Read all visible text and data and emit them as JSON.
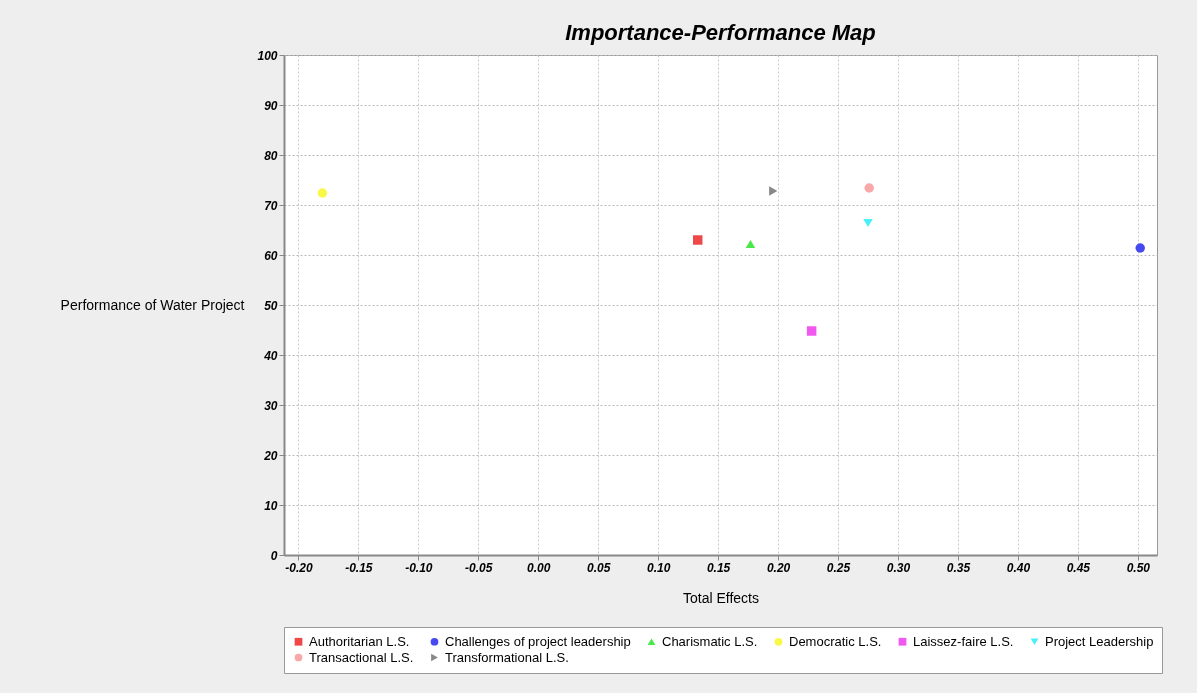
{
  "chart_data": {
    "type": "scatter",
    "title": "Importance-Performance Map",
    "xlabel": "Total Effects",
    "ylabel": "Performance of Water Project",
    "xlim": [
      -0.212,
      0.516
    ],
    "ylim": [
      0,
      100
    ],
    "xticks": [
      {
        "value": -0.2,
        "label": "-0.20"
      },
      -0.15,
      {
        "value": -0.1,
        "label": "-0.10"
      },
      -0.05,
      {
        "value": 0,
        "label": "0.00"
      },
      0.05,
      {
        "value": 0.1,
        "label": "0.10"
      },
      0.15,
      {
        "value": 0.2,
        "label": "0.20"
      },
      0.25,
      {
        "value": 0.3,
        "label": "0.30"
      },
      0.35,
      {
        "value": 0.4,
        "label": "0.40"
      },
      0.45,
      {
        "value": 0.5,
        "label": "0.50"
      }
    ],
    "yticks": [
      0,
      10,
      20,
      30,
      40,
      50,
      60,
      70,
      80,
      90,
      100
    ],
    "grid": true,
    "legend": "bottom",
    "series": [
      {
        "name": "Authoritarian L.S.",
        "color": "#f04848",
        "marker": "square",
        "x": [
          0.133
        ],
        "values": [
          63.0
        ]
      },
      {
        "name": "Challenges of project leadership",
        "color": "#4848f0",
        "marker": "circle",
        "x": [
          0.502
        ],
        "values": [
          61.4
        ]
      },
      {
        "name": "Charismatic L.S.",
        "color": "#48e848",
        "marker": "triangle",
        "x": [
          0.177
        ],
        "values": [
          62.2
        ]
      },
      {
        "name": "Democratic L.S.",
        "color": "#f8f848",
        "marker": "circle",
        "x": [
          -0.18
        ],
        "values": [
          72.4
        ]
      },
      {
        "name": "Laissez-faire L.S.",
        "color": "#f058f0",
        "marker": "square",
        "x": [
          0.228
        ],
        "values": [
          44.8
        ]
      },
      {
        "name": "Project Leadership",
        "color": "#48f0f8",
        "marker": "triangle-down",
        "x": [
          0.275
        ],
        "values": [
          66.4
        ]
      },
      {
        "name": "Transactional L.S.",
        "color": "#f8a8a8",
        "marker": "circle",
        "x": [
          0.276
        ],
        "values": [
          73.4
        ]
      },
      {
        "name": "Transformational L.S.",
        "color": "#888888",
        "marker": "triangle-right",
        "x": [
          0.196
        ],
        "values": [
          72.8
        ]
      }
    ]
  }
}
